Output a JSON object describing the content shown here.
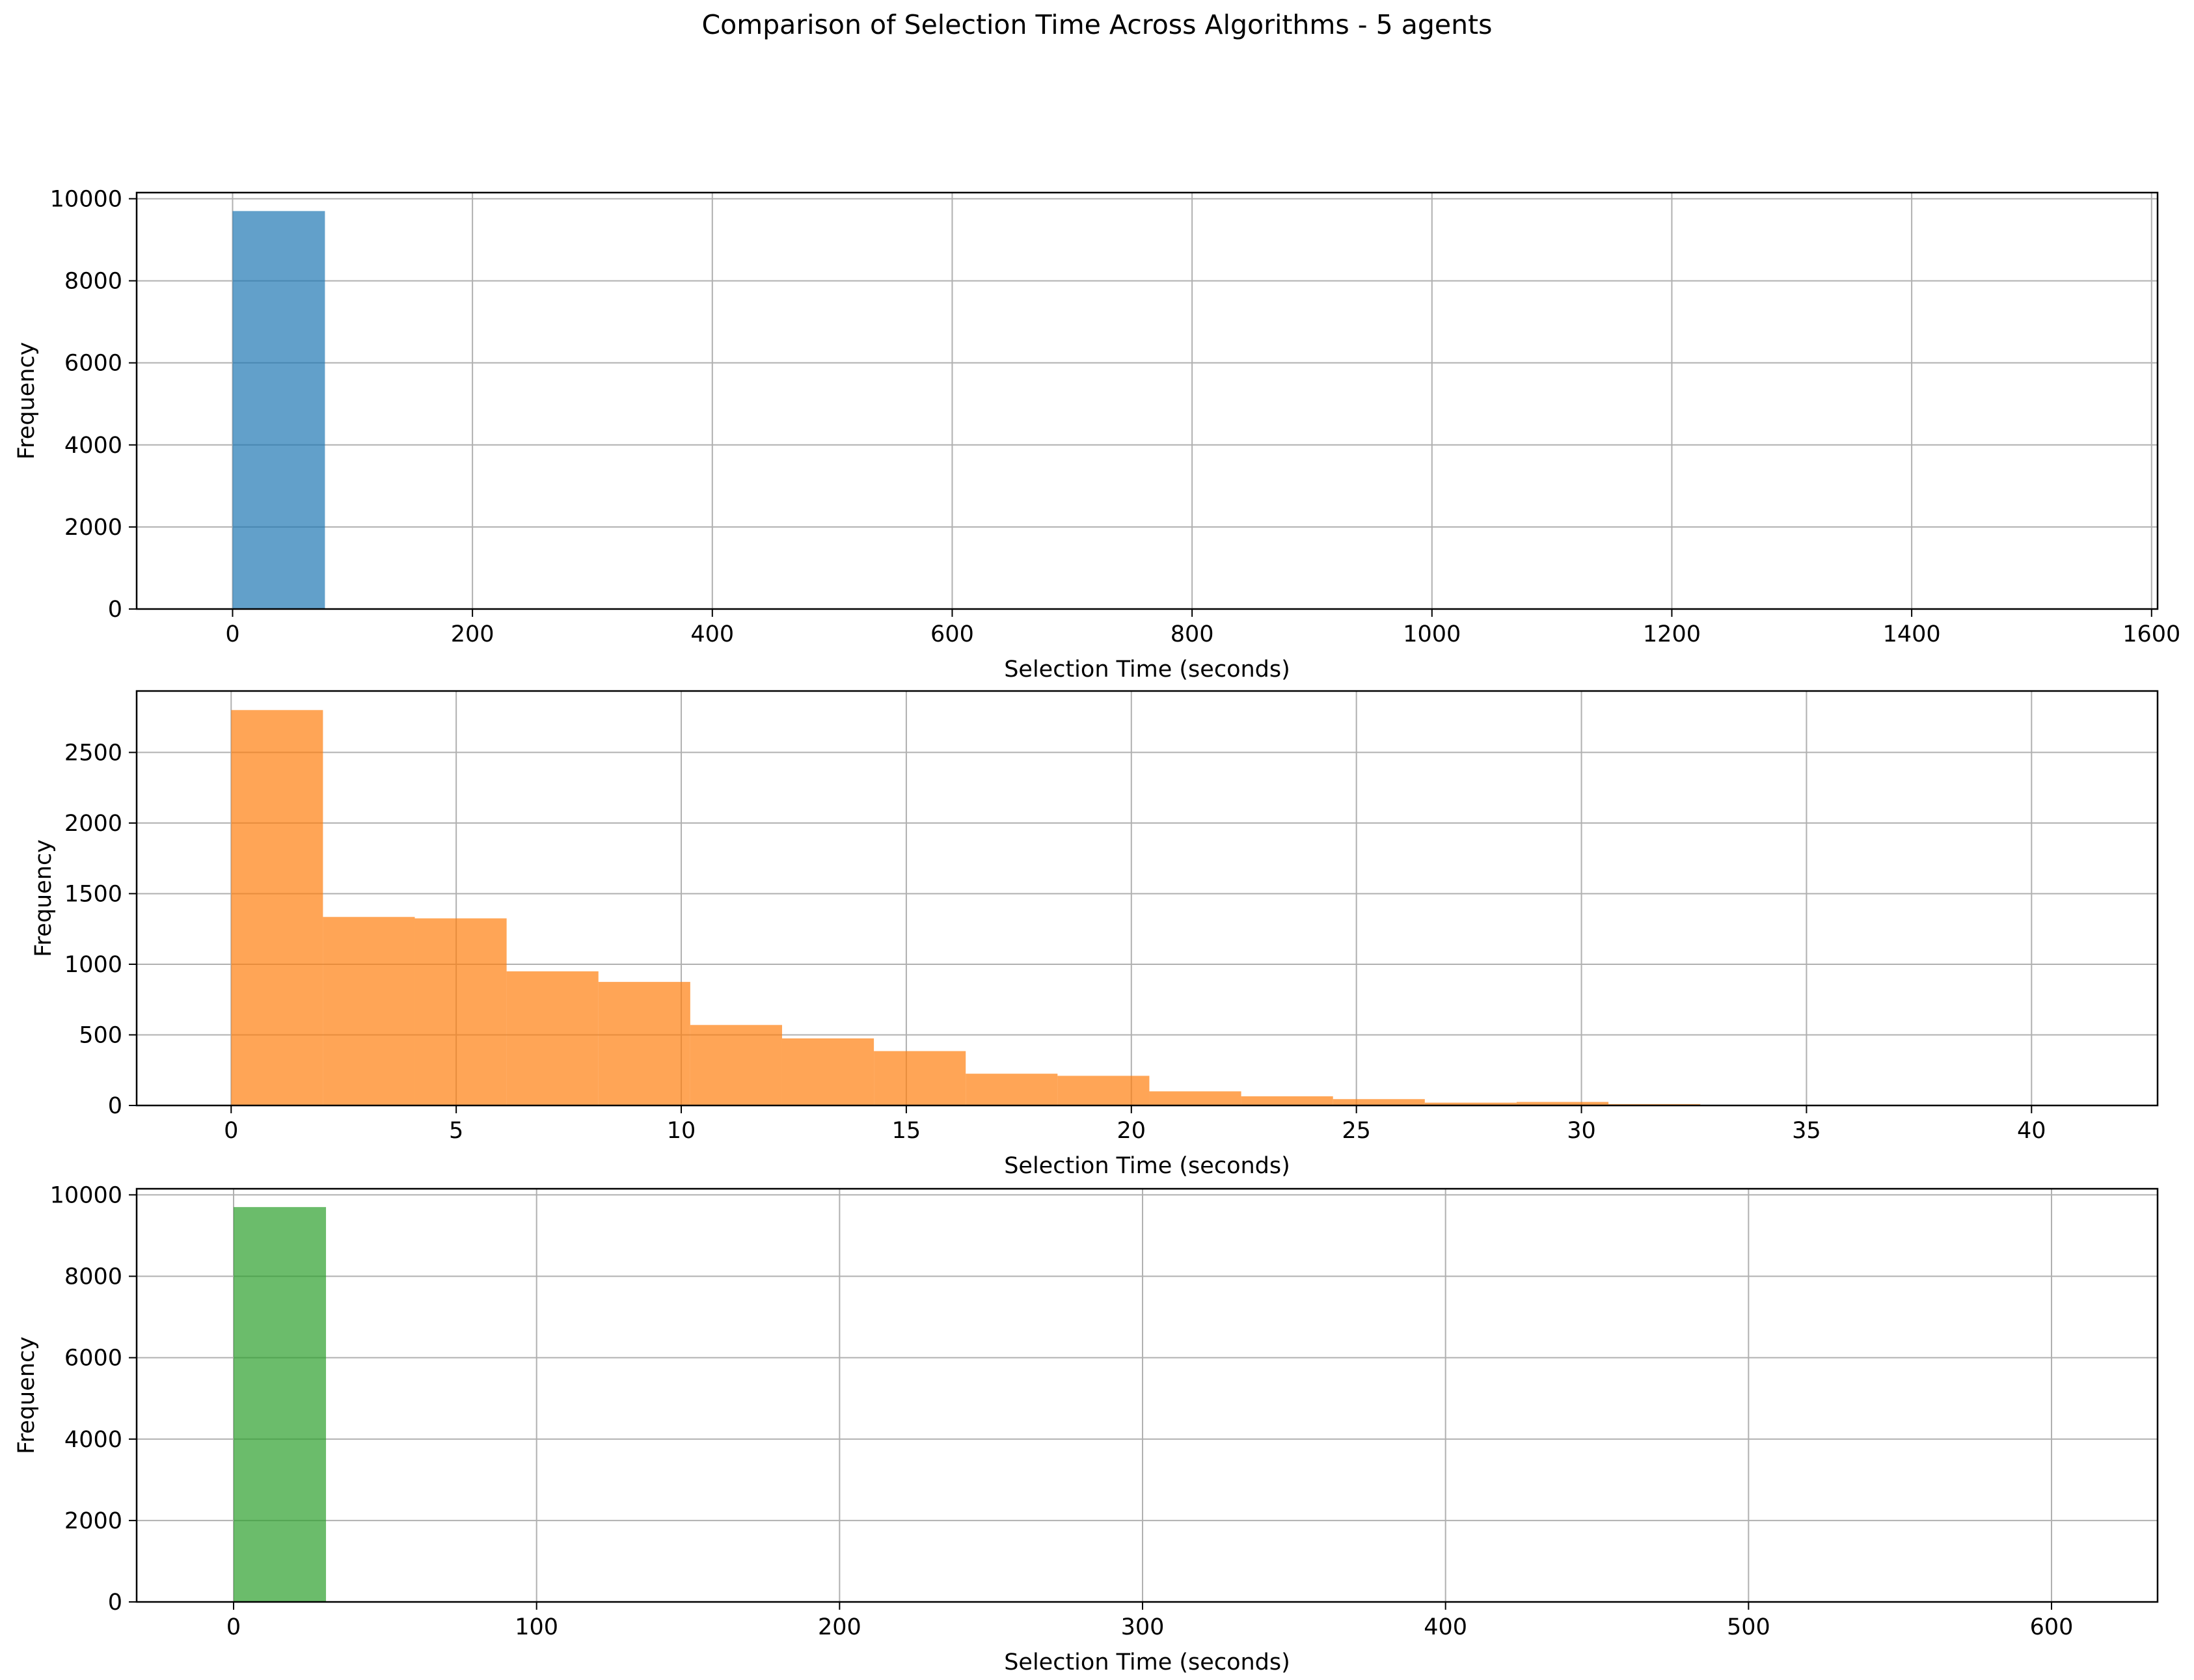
{
  "title": "Comparison of Selection Time Across Algorithms - 5 agents",
  "colors": {
    "panel1": "#1f77b4",
    "panel2": "#ff7f0e",
    "panel3": "#2ca02c",
    "grid": "#b0b0b0"
  },
  "chart_data": [
    {
      "type": "bar",
      "histogram": true,
      "xlabel": "Selection Time (seconds)",
      "ylabel": "Frequency",
      "xlim": [
        -80,
        1605
      ],
      "ylim": [
        0,
        10150
      ],
      "xticks": [
        0,
        200,
        400,
        600,
        800,
        1000,
        1200,
        1400,
        1600
      ],
      "yticks": [
        0,
        2000,
        4000,
        6000,
        8000,
        10000
      ],
      "grid": true,
      "bins": [
        {
          "x0": 0,
          "x1": 77,
          "value": 9700
        }
      ]
    },
    {
      "type": "bar",
      "histogram": true,
      "xlabel": "Selection Time (seconds)",
      "ylabel": "Frequency",
      "xlim": [
        -2.1,
        42.8
      ],
      "ylim": [
        0,
        2935
      ],
      "xticks": [
        0,
        5,
        10,
        15,
        20,
        25,
        30,
        35,
        40
      ],
      "yticks": [
        0,
        500,
        1000,
        1500,
        2000,
        2500
      ],
      "grid": true,
      "bins": [
        {
          "x0": 0.0,
          "x1": 2.04,
          "value": 2800
        },
        {
          "x0": 2.04,
          "x1": 4.08,
          "value": 1335
        },
        {
          "x0": 4.08,
          "x1": 6.12,
          "value": 1325
        },
        {
          "x0": 6.12,
          "x1": 8.16,
          "value": 950
        },
        {
          "x0": 8.16,
          "x1": 10.2,
          "value": 875
        },
        {
          "x0": 10.2,
          "x1": 12.24,
          "value": 570
        },
        {
          "x0": 12.24,
          "x1": 14.28,
          "value": 475
        },
        {
          "x0": 14.28,
          "x1": 16.32,
          "value": 385
        },
        {
          "x0": 16.32,
          "x1": 18.36,
          "value": 225
        },
        {
          "x0": 18.36,
          "x1": 20.4,
          "value": 210
        },
        {
          "x0": 20.4,
          "x1": 22.44,
          "value": 100
        },
        {
          "x0": 22.44,
          "x1": 24.48,
          "value": 65
        },
        {
          "x0": 24.48,
          "x1": 26.52,
          "value": 45
        },
        {
          "x0": 26.52,
          "x1": 28.56,
          "value": 20
        },
        {
          "x0": 28.56,
          "x1": 30.6,
          "value": 25
        },
        {
          "x0": 30.6,
          "x1": 32.64,
          "value": 10
        },
        {
          "x0": 32.64,
          "x1": 34.68,
          "value": 3
        },
        {
          "x0": 34.68,
          "x1": 36.72,
          "value": 3
        },
        {
          "x0": 36.72,
          "x1": 38.76,
          "value": 2
        },
        {
          "x0": 38.76,
          "x1": 40.8,
          "value": 1
        }
      ]
    },
    {
      "type": "bar",
      "histogram": true,
      "xlabel": "Selection Time (seconds)",
      "ylabel": "Frequency",
      "xlim": [
        -32,
        635
      ],
      "ylim": [
        0,
        10150
      ],
      "xticks": [
        0,
        100,
        200,
        300,
        400,
        500,
        600
      ],
      "yticks": [
        0,
        2000,
        4000,
        6000,
        8000,
        10000
      ],
      "grid": true,
      "bins": [
        {
          "x0": 0,
          "x1": 30.5,
          "value": 9700
        }
      ]
    }
  ]
}
